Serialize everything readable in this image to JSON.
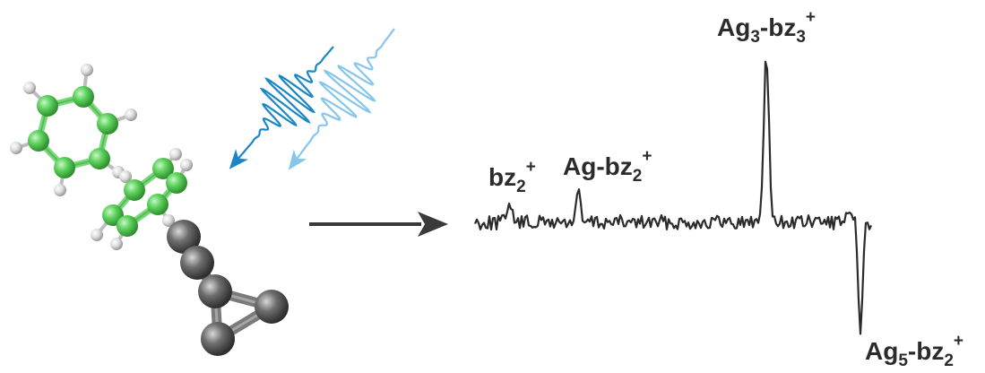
{
  "colors": {
    "carbon_atom": "#5fd35f",
    "hydrogen_atom": "#e8e8e8",
    "silver_atom": "#6e6e6e",
    "pump_pulse": "#1a86c8",
    "probe_pulse": "#86c6ec",
    "trace": "#2b2b2b",
    "arrow": "#3a3a3a"
  },
  "icons": {
    "molecule": "benzene-dimer-silver-cluster-icon",
    "laser_pulses": "laser-pulse-pair-icon",
    "reaction_arrow": "right-arrow-icon"
  },
  "spectrum": {
    "peaks": [
      {
        "id": "bz2",
        "base": "bz",
        "sub": "2",
        "sup": "+"
      },
      {
        "id": "ag_bz2",
        "base": "Ag-bz",
        "sub": "2",
        "sup": "+"
      },
      {
        "id": "ag3_bz3",
        "base": "Ag",
        "sub": "3",
        "mid": "-bz",
        "sub2": "3",
        "sup": "+"
      },
      {
        "id": "ag5_bz2",
        "base": "Ag",
        "sub": "5",
        "mid": "-bz",
        "sub2": "2",
        "sup": "+"
      }
    ]
  }
}
